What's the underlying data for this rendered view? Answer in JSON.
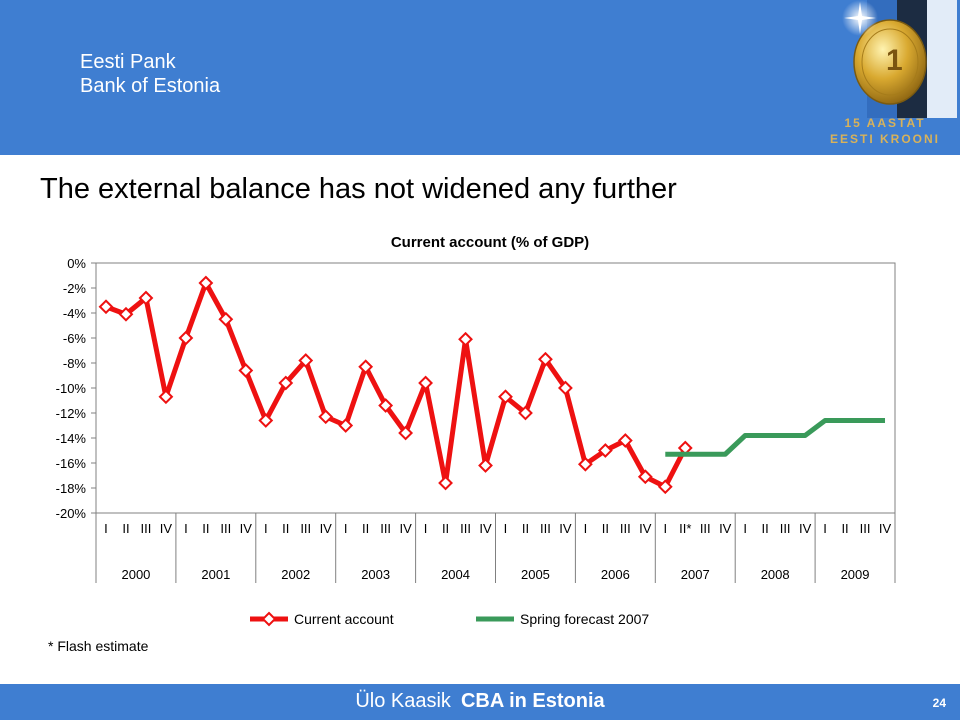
{
  "header": {
    "org_line1": "Eesti Pank",
    "org_line2": "Bank of Estonia",
    "logo_line1": "15 AASTAT",
    "logo_line2": "EESTI KROONI",
    "background_color": "#3f7ed1"
  },
  "slide": {
    "title": "The external balance has not widened any further",
    "footnote": "* Flash estimate"
  },
  "footer": {
    "author": "Ülo Kaasik",
    "topic": "CBA in Estonia",
    "page_number": "24"
  },
  "chart_data": {
    "type": "line",
    "title": "Current account (% of GDP)",
    "xlabel": "",
    "ylabel": "",
    "ylim": [
      -20,
      0
    ],
    "y_ticks": [
      0,
      -2,
      -4,
      -6,
      -8,
      -10,
      -12,
      -14,
      -16,
      -18,
      -20
    ],
    "y_tick_labels": [
      "0%",
      "-2%",
      "-4%",
      "-6%",
      "-8%",
      "-10%",
      "-12%",
      "-14%",
      "-16%",
      "-18%",
      "-20%"
    ],
    "years": [
      "2000",
      "2001",
      "2002",
      "2003",
      "2004",
      "2005",
      "2006",
      "2007",
      "2008",
      "2009"
    ],
    "quarter_labels": [
      "I",
      "II",
      "III",
      "IV",
      "I",
      "II",
      "III",
      "IV",
      "I",
      "II",
      "III",
      "IV",
      "I",
      "II",
      "III",
      "IV",
      "I",
      "II",
      "III",
      "IV",
      "I",
      "II",
      "III",
      "IV",
      "I",
      "II",
      "III",
      "IV",
      "I",
      "II*",
      "III",
      "IV",
      "I",
      "II",
      "III",
      "IV",
      "I",
      "II",
      "III",
      "IV"
    ],
    "legend_position": "bottom",
    "grid": false,
    "series": [
      {
        "name": "Current account",
        "color": "#ee1111",
        "marker": "diamond",
        "start_index": 0,
        "values": [
          -3.5,
          -4.1,
          -2.8,
          -10.7,
          -6.0,
          -1.6,
          -4.5,
          -8.6,
          -12.6,
          -9.6,
          -7.8,
          -12.3,
          -13.0,
          -8.3,
          -11.4,
          -13.6,
          -9.6,
          -17.6,
          -6.1,
          -16.2,
          -10.7,
          -12.0,
          -7.7,
          -10.0,
          -16.1,
          -15.0,
          -14.2,
          -17.1,
          -17.9,
          -14.8
        ]
      },
      {
        "name": "Spring forecast 2007",
        "color": "#3a9a5a",
        "marker": "none",
        "start_index": 28,
        "values": [
          -15.3,
          -15.3,
          -15.3,
          -15.3,
          -13.8,
          -13.8,
          -13.8,
          -13.8,
          -12.6,
          -12.6,
          -12.6,
          -12.6
        ]
      }
    ]
  }
}
